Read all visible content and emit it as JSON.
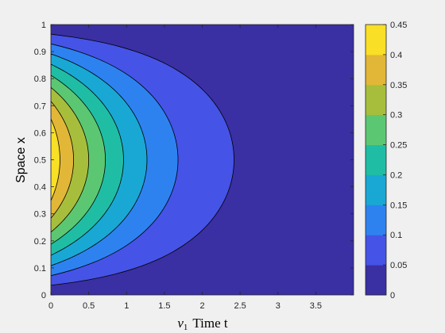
{
  "chart_data": {
    "type": "heatmap",
    "subtype": "filled-contour",
    "xlabel_parts": {
      "var": "v",
      "sub": "1",
      "text": "Time t"
    },
    "ylabel": "Space x",
    "xlim": [
      0,
      4
    ],
    "ylim": [
      0,
      1
    ],
    "x_ticks": [
      "0",
      "0.5",
      "1",
      "1.5",
      "2",
      "2.5",
      "3",
      "3.5"
    ],
    "y_ticks": [
      "0",
      "0.1",
      "0.2",
      "0.3",
      "0.4",
      "0.5",
      "0.6",
      "0.7",
      "0.8",
      "0.9",
      "1"
    ],
    "colorbar": {
      "range": [
        0,
        0.45
      ],
      "ticks": [
        "0",
        "0.05",
        "0.1",
        "0.15",
        "0.2",
        "0.25",
        "0.3",
        "0.35",
        "0.4",
        "0.45"
      ]
    },
    "contour_levels": [
      0.05,
      0.1,
      0.15,
      0.2,
      0.25,
      0.3,
      0.35,
      0.4
    ],
    "contour_extent_at_midspace": [
      2.42,
      1.68,
      1.27,
      0.96,
      0.72,
      0.5,
      0.3,
      0.12
    ],
    "level_colors": [
      "#3a2fa3",
      "#4553e6",
      "#2d82f0",
      "#19a8d4",
      "#20bda5",
      "#5cc772",
      "#a7be3c",
      "#e2b737",
      "#f9df25"
    ],
    "grid": false,
    "legend": "none"
  }
}
